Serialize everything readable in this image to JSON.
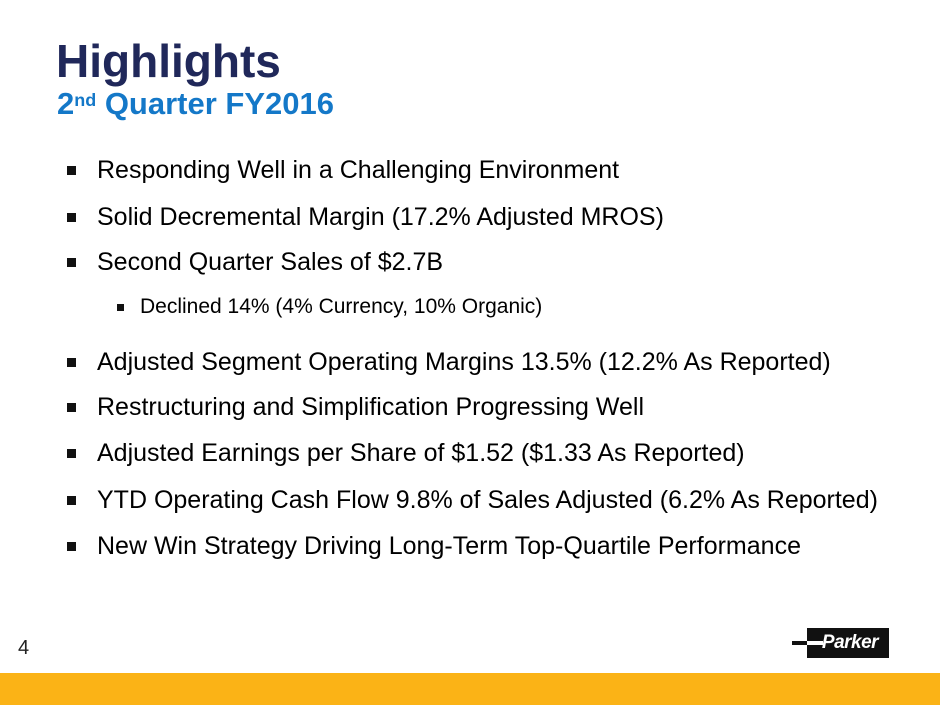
{
  "slide": {
    "title": "Highlights",
    "subtitle": {
      "prefix": "2",
      "superscript": "nd",
      "rest": " Quarter FY2016"
    },
    "bullets": [
      {
        "level": 1,
        "text": "Responding Well in a Challenging Environment"
      },
      {
        "level": 1,
        "text": "Solid Decremental Margin (17.2% Adjusted MROS)"
      },
      {
        "level": 1,
        "text": "Second Quarter Sales of $2.7B"
      },
      {
        "level": 2,
        "text": "Declined 14% (4% Currency, 10% Organic)"
      },
      {
        "level": 1,
        "text": "Adjusted Segment Operating Margins 13.5% (12.2% As Reported)"
      },
      {
        "level": 1,
        "text": "Restructuring and Simplification Progressing Well"
      },
      {
        "level": 1,
        "text": "Adjusted Earnings per Share of $1.52 ($1.33 As Reported)"
      },
      {
        "level": 1,
        "text": "YTD Operating Cash Flow 9.8% of Sales Adjusted (6.2% As Reported)"
      },
      {
        "level": 1,
        "text": "New Win Strategy Driving Long-Term Top-Quartile Performance"
      }
    ],
    "page_number": "4",
    "logo": {
      "text": "Parker"
    },
    "colors": {
      "title_navy": "#20285A",
      "subtitle_blue": "#1478C8",
      "accent_yellow": "#FBB316",
      "body_text": "#000000",
      "logo_black": "#111111"
    }
  }
}
